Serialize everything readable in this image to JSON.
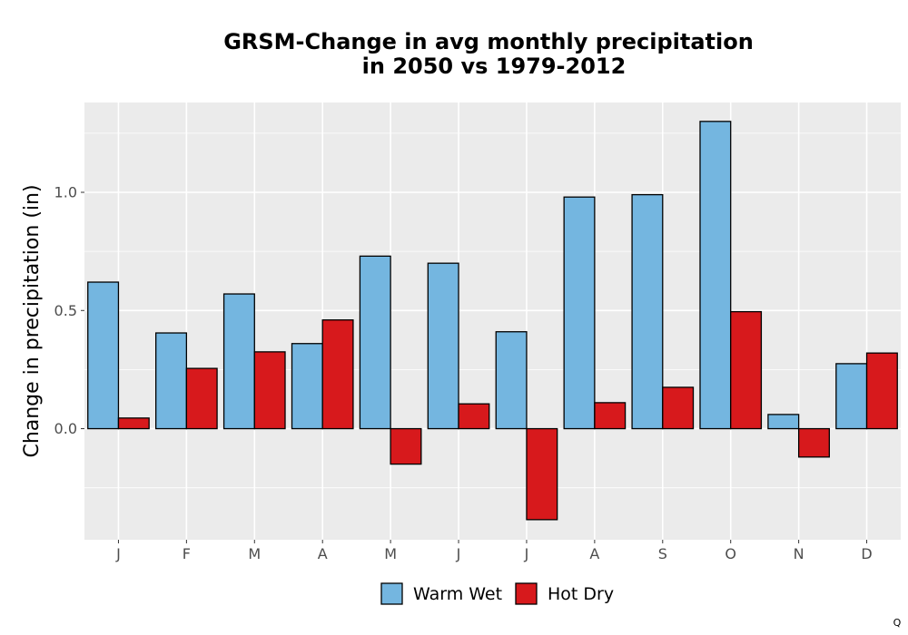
{
  "chart_data": {
    "type": "bar",
    "title": [
      "GRSM-Change in avg monthly precipitation",
      "in 2050 vs 1979-2012"
    ],
    "xlabel": "",
    "ylabel": "Change in precipitation (in)",
    "categories": [
      "J",
      "F",
      "M",
      "A",
      "M",
      "J",
      "J",
      "A",
      "S",
      "O",
      "N",
      "D"
    ],
    "series": [
      {
        "name": "Warm Wet",
        "color": "#74b6e0",
        "values": [
          0.62,
          0.405,
          0.57,
          0.36,
          0.73,
          0.7,
          0.41,
          0.98,
          0.99,
          1.3,
          0.06,
          0.275
        ]
      },
      {
        "name": "Hot Dry",
        "color": "#d7191c",
        "values": [
          0.045,
          0.255,
          0.325,
          0.46,
          -0.15,
          0.105,
          -0.385,
          0.11,
          0.175,
          0.495,
          -0.12,
          0.32
        ]
      }
    ],
    "ylim": [
      -0.47,
      1.38
    ],
    "yticks": [
      0.0,
      0.5,
      1.0
    ],
    "ytick_labels": [
      "0.0",
      "0.5",
      "1.0"
    ],
    "grid": true,
    "legend_position": "bottom"
  },
  "corner_label": "Q"
}
